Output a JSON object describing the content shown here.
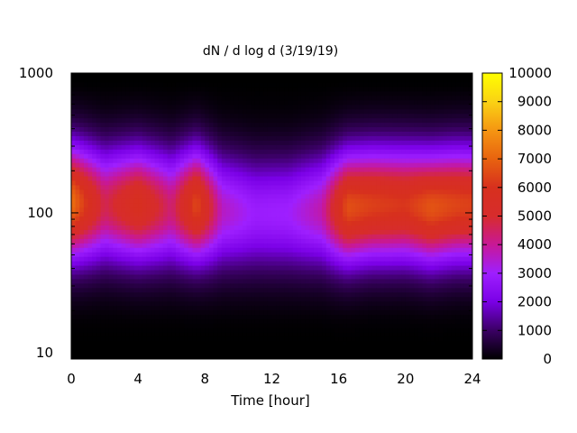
{
  "chart_data": {
    "type": "heatmap",
    "title": "dN / d log d (3/19/19)",
    "xlabel": "Time [hour]",
    "ylabel": "",
    "xlim": [
      0,
      24
    ],
    "ylim": [
      9,
      1000
    ],
    "yscale": "log",
    "x_ticks": [
      0,
      4,
      8,
      12,
      16,
      20,
      24
    ],
    "x_tick_labels": [
      "0",
      "4",
      "8",
      "12",
      "16",
      "20",
      "24"
    ],
    "y_ticks": [
      10,
      100,
      1000
    ],
    "y_tick_labels": [
      "10",
      "100",
      "1000"
    ],
    "colorbar": {
      "min": 0,
      "max": 10000,
      "ticks": [
        0,
        1000,
        2000,
        3000,
        4000,
        5000,
        6000,
        7000,
        8000,
        9000,
        10000
      ],
      "tick_labels": [
        "0",
        "1000",
        "2000",
        "3000",
        "4000",
        "5000",
        "6000",
        "7000",
        "8000",
        "9000",
        "10000"
      ],
      "palette": [
        "#000000",
        "#3a0064",
        "#7a00e6",
        "#9e1fff",
        "#c81896",
        "#d72c2c",
        "#d7301e",
        "#e8630f",
        "#f59612",
        "#fad214",
        "#ffff00"
      ]
    },
    "grid": false,
    "time_hours": [
      0,
      2,
      4,
      6,
      7.5,
      9,
      11,
      13,
      15,
      16.5,
      18,
      20,
      21.5,
      23,
      24
    ],
    "mode_peak_diameter": [
      120,
      115,
      115,
      110,
      115,
      105,
      100,
      100,
      105,
      110,
      115,
      115,
      110,
      115,
      115
    ],
    "peak_concentration": [
      7300,
      4600,
      5900,
      4300,
      6500,
      3600,
      2900,
      3000,
      3800,
      6600,
      6300,
      6100,
      6700,
      6400,
      6300
    ],
    "missing_data_color": "#ffffff"
  }
}
